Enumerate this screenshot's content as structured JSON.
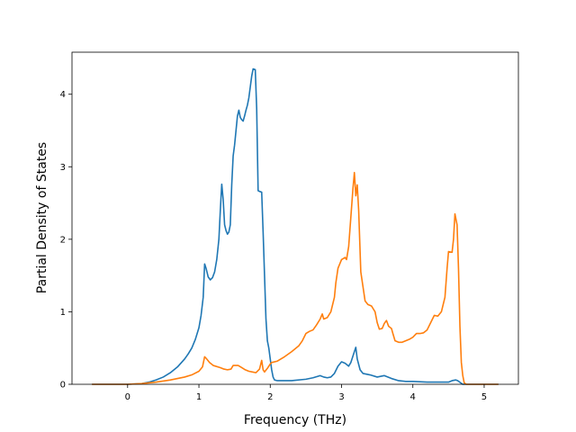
{
  "chart_data": {
    "type": "line",
    "title": "",
    "xlabel": "Frequency (THz)",
    "ylabel": "Partial Density of States",
    "xlim": [
      -0.78,
      5.48
    ],
    "ylim": [
      0,
      4.58
    ],
    "xticks": [
      0,
      1,
      2,
      3,
      4,
      5
    ],
    "yticks": [
      0,
      1,
      2,
      3,
      4
    ],
    "grid": false,
    "legend": "none",
    "series": [
      {
        "color": "#1f77b4",
        "points": [
          [
            -0.5,
            0
          ],
          [
            0.0,
            0.0
          ],
          [
            0.2,
            0.01
          ],
          [
            0.3,
            0.03
          ],
          [
            0.4,
            0.06
          ],
          [
            0.5,
            0.1
          ],
          [
            0.6,
            0.16
          ],
          [
            0.7,
            0.24
          ],
          [
            0.8,
            0.35
          ],
          [
            0.85,
            0.42
          ],
          [
            0.9,
            0.5
          ],
          [
            0.95,
            0.62
          ],
          [
            1.0,
            0.78
          ],
          [
            1.03,
            0.95
          ],
          [
            1.06,
            1.2
          ],
          [
            1.08,
            1.66
          ],
          [
            1.1,
            1.6
          ],
          [
            1.13,
            1.48
          ],
          [
            1.16,
            1.44
          ],
          [
            1.19,
            1.47
          ],
          [
            1.22,
            1.55
          ],
          [
            1.25,
            1.72
          ],
          [
            1.28,
            2.0
          ],
          [
            1.3,
            2.4
          ],
          [
            1.32,
            2.76
          ],
          [
            1.34,
            2.55
          ],
          [
            1.36,
            2.2
          ],
          [
            1.38,
            2.12
          ],
          [
            1.4,
            2.07
          ],
          [
            1.42,
            2.1
          ],
          [
            1.44,
            2.2
          ],
          [
            1.46,
            2.75
          ],
          [
            1.48,
            3.15
          ],
          [
            1.5,
            3.3
          ],
          [
            1.52,
            3.5
          ],
          [
            1.54,
            3.7
          ],
          [
            1.56,
            3.78
          ],
          [
            1.58,
            3.68
          ],
          [
            1.6,
            3.65
          ],
          [
            1.62,
            3.63
          ],
          [
            1.64,
            3.7
          ],
          [
            1.66,
            3.78
          ],
          [
            1.68,
            3.85
          ],
          [
            1.7,
            3.95
          ],
          [
            1.72,
            4.1
          ],
          [
            1.74,
            4.25
          ],
          [
            1.76,
            4.35
          ],
          [
            1.79,
            4.34
          ],
          [
            1.81,
            3.8
          ],
          [
            1.83,
            2.67
          ],
          [
            1.85,
            2.66
          ],
          [
            1.88,
            2.65
          ],
          [
            1.9,
            2.1
          ],
          [
            1.92,
            1.5
          ],
          [
            1.94,
            0.9
          ],
          [
            1.96,
            0.6
          ],
          [
            1.98,
            0.5
          ],
          [
            2.0,
            0.35
          ],
          [
            2.02,
            0.2
          ],
          [
            2.04,
            0.1
          ],
          [
            2.06,
            0.06
          ],
          [
            2.1,
            0.05
          ],
          [
            2.3,
            0.05
          ],
          [
            2.5,
            0.07
          ],
          [
            2.6,
            0.09
          ],
          [
            2.7,
            0.12
          ],
          [
            2.75,
            0.1
          ],
          [
            2.8,
            0.09
          ],
          [
            2.85,
            0.1
          ],
          [
            2.9,
            0.15
          ],
          [
            2.95,
            0.25
          ],
          [
            3.0,
            0.31
          ],
          [
            3.05,
            0.29
          ],
          [
            3.1,
            0.25
          ],
          [
            3.13,
            0.3
          ],
          [
            3.17,
            0.42
          ],
          [
            3.2,
            0.51
          ],
          [
            3.22,
            0.35
          ],
          [
            3.26,
            0.2
          ],
          [
            3.3,
            0.15
          ],
          [
            3.4,
            0.13
          ],
          [
            3.5,
            0.1
          ],
          [
            3.6,
            0.12
          ],
          [
            3.7,
            0.08
          ],
          [
            3.8,
            0.05
          ],
          [
            3.9,
            0.04
          ],
          [
            4.0,
            0.04
          ],
          [
            4.2,
            0.03
          ],
          [
            4.4,
            0.03
          ],
          [
            4.5,
            0.03
          ],
          [
            4.55,
            0.05
          ],
          [
            4.6,
            0.06
          ],
          [
            4.63,
            0.05
          ],
          [
            4.67,
            0.02
          ],
          [
            4.7,
            0.0
          ],
          [
            4.75,
            0
          ],
          [
            5.2,
            0
          ]
        ]
      },
      {
        "color": "#ff7f0e",
        "points": [
          [
            -0.5,
            0
          ],
          [
            0.0,
            0.0
          ],
          [
            0.2,
            0.01
          ],
          [
            0.4,
            0.03
          ],
          [
            0.6,
            0.06
          ],
          [
            0.8,
            0.1
          ],
          [
            0.9,
            0.13
          ],
          [
            1.0,
            0.18
          ],
          [
            1.05,
            0.24
          ],
          [
            1.08,
            0.38
          ],
          [
            1.1,
            0.36
          ],
          [
            1.15,
            0.3
          ],
          [
            1.2,
            0.26
          ],
          [
            1.3,
            0.23
          ],
          [
            1.35,
            0.21
          ],
          [
            1.4,
            0.2
          ],
          [
            1.45,
            0.21
          ],
          [
            1.48,
            0.26
          ],
          [
            1.55,
            0.26
          ],
          [
            1.6,
            0.23
          ],
          [
            1.65,
            0.2
          ],
          [
            1.7,
            0.18
          ],
          [
            1.75,
            0.17
          ],
          [
            1.8,
            0.16
          ],
          [
            1.85,
            0.21
          ],
          [
            1.88,
            0.33
          ],
          [
            1.9,
            0.2
          ],
          [
            1.92,
            0.17
          ],
          [
            1.96,
            0.22
          ],
          [
            2.0,
            0.28
          ],
          [
            2.02,
            0.3
          ],
          [
            2.1,
            0.32
          ],
          [
            2.2,
            0.38
          ],
          [
            2.3,
            0.45
          ],
          [
            2.4,
            0.53
          ],
          [
            2.45,
            0.6
          ],
          [
            2.5,
            0.7
          ],
          [
            2.55,
            0.73
          ],
          [
            2.6,
            0.75
          ],
          [
            2.65,
            0.82
          ],
          [
            2.7,
            0.9
          ],
          [
            2.73,
            0.97
          ],
          [
            2.75,
            0.9
          ],
          [
            2.8,
            0.92
          ],
          [
            2.85,
            1.0
          ],
          [
            2.9,
            1.2
          ],
          [
            2.92,
            1.4
          ],
          [
            2.95,
            1.6
          ],
          [
            3.0,
            1.72
          ],
          [
            3.05,
            1.75
          ],
          [
            3.07,
            1.72
          ],
          [
            3.1,
            1.9
          ],
          [
            3.13,
            2.3
          ],
          [
            3.16,
            2.7
          ],
          [
            3.18,
            2.92
          ],
          [
            3.2,
            2.6
          ],
          [
            3.22,
            2.75
          ],
          [
            3.24,
            2.4
          ],
          [
            3.27,
            1.55
          ],
          [
            3.3,
            1.35
          ],
          [
            3.33,
            1.15
          ],
          [
            3.37,
            1.1
          ],
          [
            3.42,
            1.08
          ],
          [
            3.47,
            1.0
          ],
          [
            3.5,
            0.85
          ],
          [
            3.53,
            0.76
          ],
          [
            3.57,
            0.77
          ],
          [
            3.6,
            0.84
          ],
          [
            3.63,
            0.88
          ],
          [
            3.66,
            0.8
          ],
          [
            3.7,
            0.77
          ],
          [
            3.72,
            0.7
          ],
          [
            3.75,
            0.6
          ],
          [
            3.8,
            0.58
          ],
          [
            3.85,
            0.58
          ],
          [
            3.9,
            0.6
          ],
          [
            3.95,
            0.62
          ],
          [
            4.0,
            0.65
          ],
          [
            4.05,
            0.7
          ],
          [
            4.1,
            0.7
          ],
          [
            4.15,
            0.71
          ],
          [
            4.2,
            0.75
          ],
          [
            4.25,
            0.85
          ],
          [
            4.3,
            0.95
          ],
          [
            4.35,
            0.94
          ],
          [
            4.4,
            1.0
          ],
          [
            4.45,
            1.2
          ],
          [
            4.48,
            1.6
          ],
          [
            4.5,
            1.83
          ],
          [
            4.55,
            1.82
          ],
          [
            4.57,
            2.0
          ],
          [
            4.59,
            2.35
          ],
          [
            4.62,
            2.2
          ],
          [
            4.64,
            1.6
          ],
          [
            4.66,
            0.8
          ],
          [
            4.68,
            0.3
          ],
          [
            4.7,
            0.12
          ],
          [
            4.72,
            0.02
          ],
          [
            4.75,
            0
          ],
          [
            5.2,
            0
          ]
        ]
      }
    ]
  }
}
